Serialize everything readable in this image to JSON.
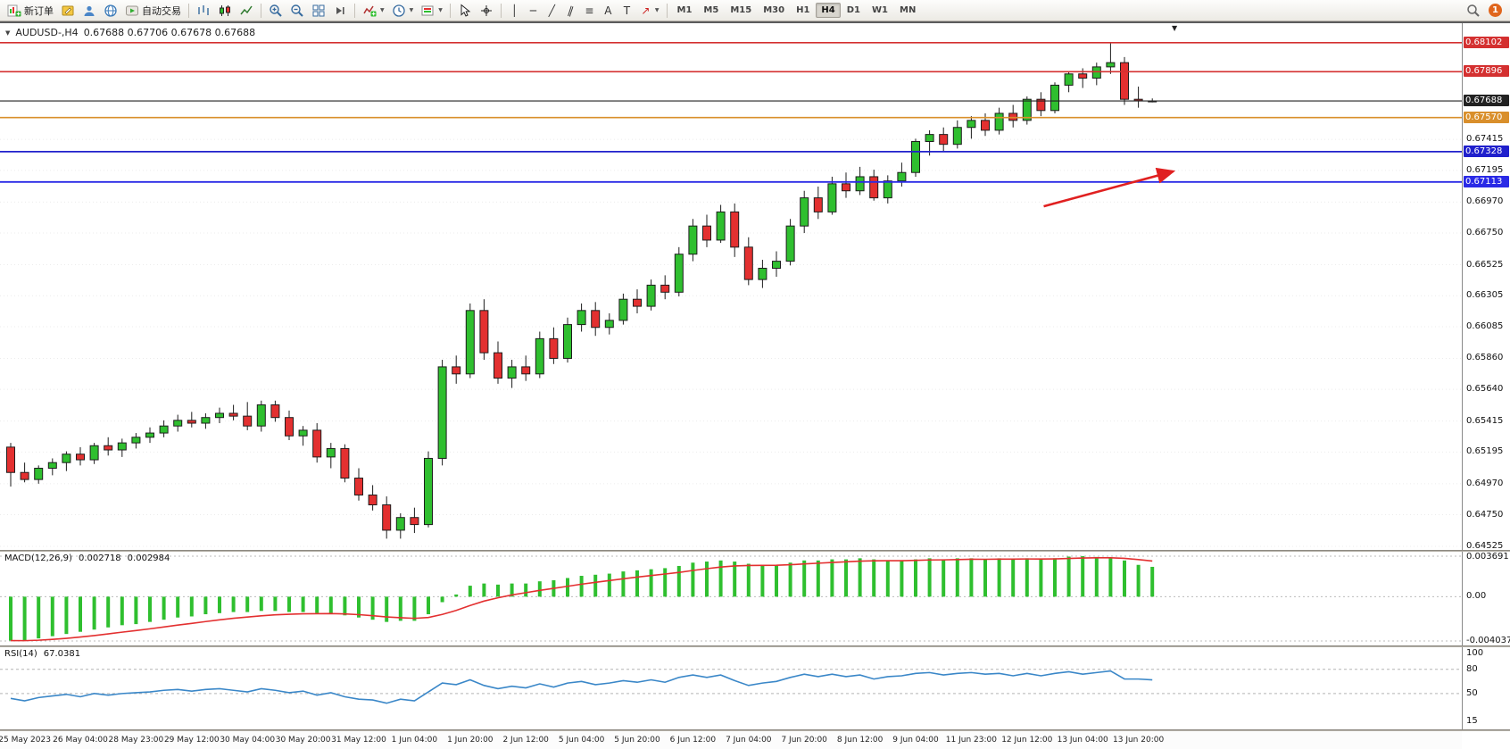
{
  "glyphs": {
    "caret": "▼",
    "symbol_dropdown": "▼",
    "shift_marker": "▼",
    "crosshair": "+",
    "vline": "│",
    "hline": "─",
    "trendline": "╱",
    "channel": "∥",
    "fibonacci": "≡",
    "text_tool": "A",
    "label_tool": "T",
    "arrow_tool": "↗"
  },
  "toolbar": {
    "new_order_label": "新订单",
    "autotrading_label": "自动交易",
    "timeframes": {
      "items": [
        "M1",
        "M5",
        "M15",
        "M30",
        "H1",
        "H4",
        "D1",
        "W1",
        "MN"
      ],
      "active": "H4"
    },
    "notification_count": "1"
  },
  "chart_header": {
    "symbol_period": "AUDUSD-,H4",
    "ohlc": "0.67688 0.67706 0.67678 0.67688"
  },
  "macd": {
    "label": "MACD(12,26,9)",
    "value": "0.002718",
    "signal": "0.002984"
  },
  "rsi": {
    "label": "RSI(14)",
    "value": "67.0381"
  },
  "chart_data": [
    {
      "type": "candlestick",
      "symbol": "AUDUSD",
      "period": "H4",
      "ohlc_current": {
        "open": 0.67688,
        "high": 0.67706,
        "low": 0.67678,
        "close": 0.67688
      },
      "ylim": [
        0.645,
        0.6824
      ],
      "y_ticks": [
        0.67415,
        0.67195,
        0.6697,
        0.6675,
        0.66525,
        0.66305,
        0.66085,
        0.6586,
        0.6564,
        0.65415,
        0.65195,
        0.6497,
        0.6475,
        0.64525
      ],
      "x_labels": [
        "25 May 2023",
        "26 May 04:00",
        "28 May 23:00",
        "29 May 12:00",
        "30 May 04:00",
        "30 May 20:00",
        "31 May 12:00",
        "1 Jun 04:00",
        "1 Jun 20:00",
        "2 Jun 12:00",
        "5 Jun 04:00",
        "5 Jun 20:00",
        "6 Jun 12:00",
        "7 Jun 04:00",
        "7 Jun 20:00",
        "8 Jun 12:00",
        "9 Jun 04:00",
        "11 Jun 23:00",
        "12 Jun 12:00",
        "13 Jun 04:00",
        "13 Jun 20:00"
      ],
      "label_start_index": 1,
      "label_step": 4,
      "colors": {
        "up": "#2fbf2f",
        "down": "#e33030",
        "outline": "#1d1d1d"
      },
      "hlines": [
        {
          "price": 0.68102,
          "color": "#d43030",
          "width": 1.6,
          "role": "resistance-line"
        },
        {
          "price": 0.67896,
          "color": "#d43030",
          "width": 1.6,
          "role": "resistance-line"
        },
        {
          "price": 0.67688,
          "color": "#222222",
          "width": 1.2,
          "role": "current-price-line"
        },
        {
          "price": 0.6757,
          "color": "#d98f2b",
          "width": 1.6,
          "role": "level-line"
        },
        {
          "price": 0.67328,
          "color": "#2020cc",
          "width": 1.8,
          "role": "support-line"
        },
        {
          "price": 0.67113,
          "color": "#2a2ae6",
          "width": 1.8,
          "role": "support-line"
        }
      ],
      "arrow": {
        "from_index": 74.2,
        "from_price": 0.6694,
        "to_index": 83.5,
        "to_price": 0.67188,
        "color": "#e02020"
      },
      "candles": [
        [
          0.6523,
          0.6526,
          0.6495,
          0.6505
        ],
        [
          0.6505,
          0.6512,
          0.6498,
          0.65
        ],
        [
          0.65,
          0.651,
          0.6497,
          0.6508
        ],
        [
          0.6508,
          0.6515,
          0.6503,
          0.6512
        ],
        [
          0.6512,
          0.652,
          0.6506,
          0.6518
        ],
        [
          0.6518,
          0.6523,
          0.651,
          0.6514
        ],
        [
          0.6514,
          0.6526,
          0.6511,
          0.6524
        ],
        [
          0.6524,
          0.653,
          0.6517,
          0.6521
        ],
        [
          0.6521,
          0.6529,
          0.6516,
          0.6526
        ],
        [
          0.6526,
          0.6533,
          0.6522,
          0.653
        ],
        [
          0.653,
          0.6537,
          0.6526,
          0.6533
        ],
        [
          0.6533,
          0.6542,
          0.653,
          0.6538
        ],
        [
          0.6538,
          0.6546,
          0.6534,
          0.6542
        ],
        [
          0.6542,
          0.6548,
          0.6537,
          0.654
        ],
        [
          0.654,
          0.6547,
          0.6536,
          0.6544
        ],
        [
          0.6544,
          0.6551,
          0.654,
          0.6547
        ],
        [
          0.6547,
          0.6553,
          0.6542,
          0.6545
        ],
        [
          0.6545,
          0.6555,
          0.6535,
          0.6538
        ],
        [
          0.6538,
          0.6556,
          0.6534,
          0.6553
        ],
        [
          0.6553,
          0.6556,
          0.6541,
          0.6544
        ],
        [
          0.6544,
          0.6549,
          0.6528,
          0.6531
        ],
        [
          0.6531,
          0.6538,
          0.6524,
          0.6535
        ],
        [
          0.6535,
          0.654,
          0.6512,
          0.6516
        ],
        [
          0.6516,
          0.6526,
          0.6508,
          0.6522
        ],
        [
          0.6522,
          0.6525,
          0.6498,
          0.6501
        ],
        [
          0.6501,
          0.6508,
          0.6485,
          0.6489
        ],
        [
          0.6489,
          0.6496,
          0.6478,
          0.6482
        ],
        [
          0.6482,
          0.6488,
          0.6458,
          0.6464
        ],
        [
          0.6464,
          0.6476,
          0.6458,
          0.6473
        ],
        [
          0.6473,
          0.648,
          0.6462,
          0.6468
        ],
        [
          0.6468,
          0.652,
          0.6466,
          0.6515
        ],
        [
          0.6515,
          0.6585,
          0.651,
          0.658
        ],
        [
          0.658,
          0.6588,
          0.6568,
          0.6575
        ],
        [
          0.6575,
          0.6625,
          0.6572,
          0.662
        ],
        [
          0.662,
          0.6628,
          0.6585,
          0.659
        ],
        [
          0.659,
          0.6598,
          0.6568,
          0.6572
        ],
        [
          0.6572,
          0.6585,
          0.6565,
          0.658
        ],
        [
          0.658,
          0.6588,
          0.657,
          0.6575
        ],
        [
          0.6575,
          0.6605,
          0.6572,
          0.66
        ],
        [
          0.66,
          0.6608,
          0.6582,
          0.6586
        ],
        [
          0.6586,
          0.6615,
          0.6583,
          0.661
        ],
        [
          0.661,
          0.6625,
          0.6605,
          0.662
        ],
        [
          0.662,
          0.6626,
          0.6602,
          0.6608
        ],
        [
          0.6608,
          0.6618,
          0.6603,
          0.6613
        ],
        [
          0.6613,
          0.6632,
          0.661,
          0.6628
        ],
        [
          0.6628,
          0.6635,
          0.6618,
          0.6623
        ],
        [
          0.6623,
          0.6642,
          0.662,
          0.6638
        ],
        [
          0.6638,
          0.6645,
          0.6628,
          0.6633
        ],
        [
          0.6633,
          0.6665,
          0.663,
          0.666
        ],
        [
          0.666,
          0.6685,
          0.6655,
          0.668
        ],
        [
          0.668,
          0.6688,
          0.6665,
          0.667
        ],
        [
          0.667,
          0.6695,
          0.6668,
          0.669
        ],
        [
          0.669,
          0.6696,
          0.6658,
          0.6665
        ],
        [
          0.6665,
          0.6672,
          0.6638,
          0.6642
        ],
        [
          0.6642,
          0.6656,
          0.6636,
          0.665
        ],
        [
          0.665,
          0.6662,
          0.6644,
          0.6655
        ],
        [
          0.6655,
          0.6685,
          0.6652,
          0.668
        ],
        [
          0.668,
          0.6705,
          0.6675,
          0.67
        ],
        [
          0.67,
          0.6708,
          0.6685,
          0.669
        ],
        [
          0.669,
          0.6715,
          0.6688,
          0.671
        ],
        [
          0.671,
          0.6718,
          0.67,
          0.6705
        ],
        [
          0.6705,
          0.6722,
          0.6702,
          0.6715
        ],
        [
          0.6715,
          0.672,
          0.6698,
          0.67
        ],
        [
          0.67,
          0.6716,
          0.6696,
          0.6712
        ],
        [
          0.6712,
          0.6725,
          0.6708,
          0.6718
        ],
        [
          0.6718,
          0.6742,
          0.6715,
          0.674
        ],
        [
          0.674,
          0.6748,
          0.673,
          0.6745
        ],
        [
          0.6745,
          0.675,
          0.6733,
          0.6738
        ],
        [
          0.6738,
          0.6755,
          0.6735,
          0.675
        ],
        [
          0.675,
          0.6758,
          0.6742,
          0.6755
        ],
        [
          0.6755,
          0.676,
          0.6744,
          0.6748
        ],
        [
          0.6748,
          0.6764,
          0.6745,
          0.676
        ],
        [
          0.676,
          0.6766,
          0.675,
          0.6755
        ],
        [
          0.6755,
          0.6772,
          0.6752,
          0.677
        ],
        [
          0.677,
          0.6775,
          0.6758,
          0.6762
        ],
        [
          0.6762,
          0.6782,
          0.676,
          0.678
        ],
        [
          0.678,
          0.679,
          0.6775,
          0.6788
        ],
        [
          0.6788,
          0.6792,
          0.6778,
          0.6785
        ],
        [
          0.6785,
          0.6796,
          0.678,
          0.6793
        ],
        [
          0.6793,
          0.68102,
          0.6788,
          0.6796
        ],
        [
          0.6796,
          0.68,
          0.6766,
          0.677
        ],
        [
          0.677,
          0.6779,
          0.6764,
          0.6769
        ],
        [
          0.67688,
          0.67706,
          0.67678,
          0.67688
        ]
      ]
    },
    {
      "type": "bar",
      "name": "MACD",
      "ylim": [
        -0.004037,
        0.003691
      ],
      "y_ticks": [
        [
          0.003691,
          "0.003691"
        ],
        [
          0,
          "0.00"
        ],
        [
          -0.004037,
          "-0.004037"
        ]
      ],
      "colors": {
        "bar": "#2fbf2f",
        "signal": "#e33030"
      },
      "signal_period": 9,
      "values": [
        -0.004,
        -0.004037,
        -0.0038,
        -0.0036,
        -0.0034,
        -0.0032,
        -0.003,
        -0.0028,
        -0.0026,
        -0.0025,
        -0.0023,
        -0.0021,
        -0.0019,
        -0.0018,
        -0.0016,
        -0.0015,
        -0.0014,
        -0.0014,
        -0.0013,
        -0.0013,
        -0.0014,
        -0.0014,
        -0.0015,
        -0.0015,
        -0.0017,
        -0.0019,
        -0.0021,
        -0.0023,
        -0.0022,
        -0.0022,
        -0.0016,
        -0.0005,
        0.0002,
        0.001,
        0.0012,
        0.0011,
        0.0012,
        0.0012,
        0.0014,
        0.0015,
        0.0017,
        0.0019,
        0.002,
        0.0021,
        0.0023,
        0.0024,
        0.0025,
        0.0026,
        0.0028,
        0.0031,
        0.0032,
        0.0033,
        0.0032,
        0.003,
        0.0029,
        0.0029,
        0.0031,
        0.0033,
        0.0033,
        0.0034,
        0.0034,
        0.0035,
        0.0034,
        0.0033,
        0.0033,
        0.0034,
        0.0035,
        0.0034,
        0.0035,
        0.0035,
        0.0034,
        0.0035,
        0.0034,
        0.0035,
        0.0034,
        0.0035,
        0.00365,
        0.00369,
        0.00362,
        0.00355,
        0.0033,
        0.0029,
        0.002718
      ]
    },
    {
      "type": "line",
      "name": "RSI",
      "ylim": [
        10,
        103
      ],
      "y_ticks": [
        [
          100,
          "100"
        ],
        [
          80,
          "80"
        ],
        [
          50,
          "50"
        ],
        [
          15,
          "15"
        ]
      ],
      "levels": [
        80,
        50
      ],
      "color": "#3a87c8",
      "values": [
        44,
        41,
        45,
        47,
        49,
        46,
        50,
        48,
        50,
        51,
        52,
        54,
        55,
        53,
        55,
        56,
        54,
        52,
        56,
        54,
        51,
        53,
        48,
        51,
        46,
        43,
        42,
        38,
        43,
        41,
        52,
        63,
        61,
        67,
        60,
        56,
        59,
        57,
        62,
        58,
        63,
        65,
        61,
        63,
        66,
        64,
        67,
        64,
        70,
        73,
        70,
        73,
        66,
        60,
        63,
        65,
        70,
        74,
        71,
        74,
        71,
        73,
        68,
        71,
        72,
        75,
        76,
        73,
        75,
        76,
        74,
        75,
        72,
        75,
        72,
        75,
        77,
        74,
        76,
        78,
        68,
        68,
        67
      ]
    }
  ]
}
